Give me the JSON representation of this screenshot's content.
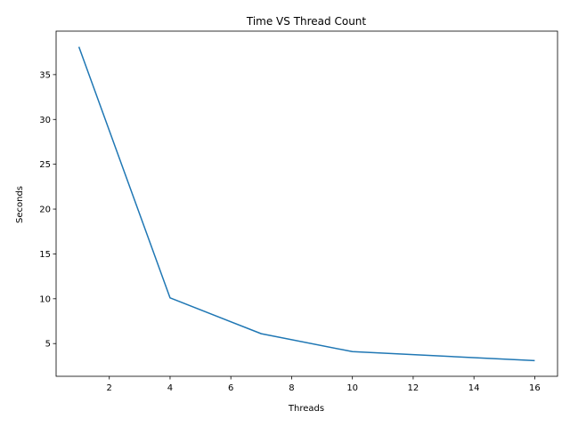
{
  "chart_data": {
    "type": "line",
    "title": "Time VS Thread Count",
    "xlabel": "Threads",
    "ylabel": "Seconds",
    "x": [
      1,
      4,
      7,
      10,
      16
    ],
    "series": [
      {
        "values": [
          38.1,
          10.1,
          6.1,
          4.1,
          3.1
        ],
        "color": "#1f77b4"
      }
    ],
    "xlim": [
      0.25,
      16.75
    ],
    "ylim": [
      1.35,
      39.85
    ],
    "xticks": [
      2,
      4,
      6,
      8,
      10,
      12,
      14,
      16
    ],
    "yticks": [
      5,
      10,
      15,
      20,
      25,
      30,
      35
    ],
    "grid": false,
    "legend": "none"
  }
}
